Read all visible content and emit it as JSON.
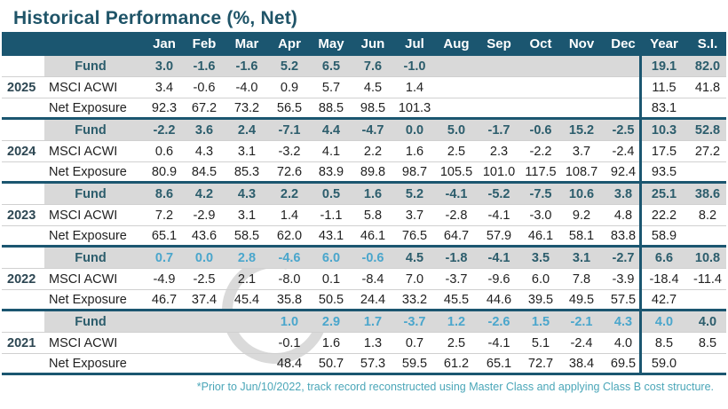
{
  "title": "Historical Performance (%, Net)",
  "header": {
    "columns": [
      "Jan",
      "Feb",
      "Mar",
      "Apr",
      "May",
      "Jun",
      "Jul",
      "Aug",
      "Sep",
      "Oct",
      "Nov",
      "Dec",
      "Year",
      "S.I."
    ]
  },
  "colors": {
    "header_bg": "#1b5670",
    "fund_text": "#2c5d6c",
    "reconstructed_text": "#4aa6cc",
    "fund_row_bg": "#d9d9d9"
  },
  "groups": [
    {
      "year": "2025",
      "rows": [
        {
          "label": "Fund",
          "values": [
            "3.0",
            "-1.6",
            "-1.6",
            "5.2",
            "6.5",
            "7.6",
            "-1.0",
            "",
            "",
            "",
            "",
            "",
            "19.1",
            "82.0"
          ]
        },
        {
          "label": "MSCI ACWI",
          "values": [
            "3.4",
            "-0.6",
            "-4.0",
            "0.9",
            "5.7",
            "4.5",
            "1.4",
            "",
            "",
            "",
            "",
            "",
            "11.5",
            "41.8"
          ]
        },
        {
          "label": "Net Exposure",
          "values": [
            "92.3",
            "67.2",
            "73.2",
            "56.5",
            "88.5",
            "98.5",
            "101.3",
            "",
            "",
            "",
            "",
            "",
            "83.1",
            ""
          ]
        }
      ]
    },
    {
      "year": "2024",
      "rows": [
        {
          "label": "Fund",
          "values": [
            "-2.2",
            "3.6",
            "2.4",
            "-7.1",
            "4.4",
            "-4.7",
            "0.0",
            "5.0",
            "-1.7",
            "-0.6",
            "15.2",
            "-2.5",
            "10.3",
            "52.8"
          ]
        },
        {
          "label": "MSCI ACWI",
          "values": [
            "0.6",
            "4.3",
            "3.1",
            "-3.2",
            "4.1",
            "2.2",
            "1.6",
            "2.5",
            "2.3",
            "-2.2",
            "3.7",
            "-2.4",
            "17.5",
            "27.2"
          ]
        },
        {
          "label": "Net Exposure",
          "values": [
            "80.9",
            "84.5",
            "85.3",
            "72.6",
            "83.9",
            "89.8",
            "98.7",
            "105.5",
            "101.0",
            "117.5",
            "108.7",
            "92.4",
            "93.5",
            ""
          ]
        }
      ]
    },
    {
      "year": "2023",
      "rows": [
        {
          "label": "Fund",
          "values": [
            "8.6",
            "4.2",
            "4.3",
            "2.2",
            "0.5",
            "1.6",
            "5.2",
            "-4.1",
            "-5.2",
            "-7.5",
            "10.6",
            "3.8",
            "25.1",
            "38.6"
          ]
        },
        {
          "label": "MSCI ACWI",
          "values": [
            "7.2",
            "-2.9",
            "3.1",
            "1.4",
            "-1.1",
            "5.8",
            "3.7",
            "-2.8",
            "-4.1",
            "-3.0",
            "9.2",
            "4.8",
            "22.2",
            "8.2"
          ]
        },
        {
          "label": "Net Exposure",
          "values": [
            "65.1",
            "43.6",
            "58.5",
            "62.0",
            "43.1",
            "46.1",
            "76.5",
            "64.7",
            "57.9",
            "46.1",
            "58.1",
            "83.8",
            "58.9",
            ""
          ]
        }
      ]
    },
    {
      "year": "2022",
      "rows": [
        {
          "label": "Fund",
          "reconstructed": [
            0,
            1,
            2,
            3,
            4,
            5
          ],
          "values": [
            "0.7",
            "0.0",
            "2.8",
            "-4.6",
            "6.0",
            "-0.6",
            "4.5",
            "-1.8",
            "-4.1",
            "3.5",
            "3.1",
            "-2.7",
            "6.6",
            "10.8"
          ]
        },
        {
          "label": "MSCI ACWI",
          "values": [
            "-4.9",
            "-2.5",
            "2.1",
            "-8.0",
            "0.1",
            "-8.4",
            "7.0",
            "-3.7",
            "-9.6",
            "6.0",
            "7.8",
            "-3.9",
            "-18.4",
            "-11.4"
          ]
        },
        {
          "label": "Net Exposure",
          "values": [
            "46.7",
            "37.4",
            "45.4",
            "35.8",
            "50.5",
            "24.4",
            "33.2",
            "45.5",
            "44.6",
            "39.5",
            "49.5",
            "57.5",
            "42.7",
            ""
          ]
        }
      ]
    },
    {
      "year": "2021",
      "rows": [
        {
          "label": "Fund",
          "reconstructed": [
            3,
            4,
            5,
            6,
            7,
            8,
            9,
            10,
            11,
            12
          ],
          "values": [
            "",
            "",
            "",
            "1.0",
            "2.9",
            "1.7",
            "-3.7",
            "1.2",
            "-2.6",
            "1.5",
            "-2.1",
            "4.3",
            "4.0",
            "4.0"
          ]
        },
        {
          "label": "MSCI ACWI",
          "values": [
            "",
            "",
            "",
            "-0.1",
            "1.6",
            "1.3",
            "0.7",
            "2.5",
            "-4.1",
            "5.1",
            "-2.4",
            "4.0",
            "8.5",
            "8.5"
          ]
        },
        {
          "label": "Net Exposure",
          "values": [
            "",
            "",
            "",
            "48.4",
            "50.7",
            "57.3",
            "59.5",
            "61.2",
            "65.1",
            "72.7",
            "38.4",
            "69.5",
            "59.0",
            ""
          ]
        }
      ]
    }
  ],
  "footnote": "*Prior to Jun/10/2022, track record reconstructed using Master Class and applying Class B cost structure."
}
